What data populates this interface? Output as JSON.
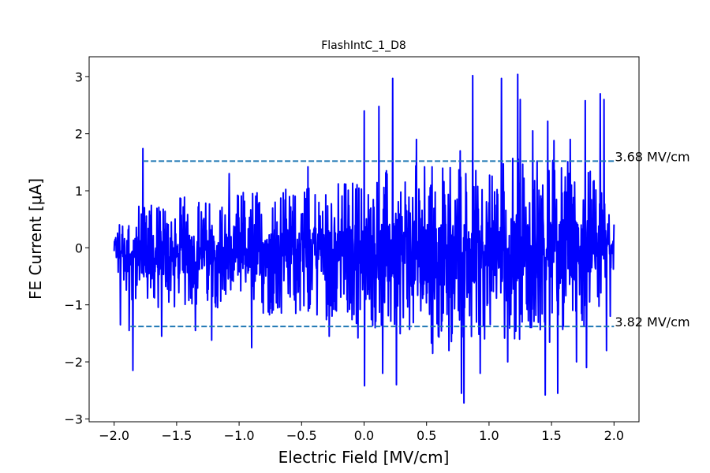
{
  "chart_data": {
    "type": "line",
    "title": "FlashIntC_1_D8",
    "xlabel": "Electric Field [MV/cm]",
    "ylabel": "FE Current [μA]",
    "xlim": [
      -2.2,
      2.2
    ],
    "ylim": [
      -3.05,
      3.35
    ],
    "x_ticks": [
      -2.0,
      -1.5,
      -1.0,
      -0.5,
      0.0,
      0.5,
      1.0,
      1.5,
      2.0
    ],
    "x_tick_labels": [
      "−2.0",
      "−1.5",
      "−1.0",
      "−0.5",
      "0.0",
      "0.5",
      "1.0",
      "1.5",
      "2.0"
    ],
    "y_ticks": [
      -3,
      -2,
      -1,
      0,
      1,
      2,
      3
    ],
    "y_tick_labels": [
      "−3",
      "−2",
      "−1",
      "0",
      "1",
      "2",
      "3"
    ],
    "grid": false,
    "series": [
      {
        "color": "#0000ff",
        "x_range": [
          -2.0,
          2.0
        ],
        "num_points": 1600,
        "envelope_points": [
          {
            "x": -2.0,
            "upper": 0.5,
            "lower": -0.5
          },
          {
            "x": -1.8,
            "upper": 0.9,
            "lower": -1.3
          },
          {
            "x": -1.5,
            "upper": 1.1,
            "lower": -1.3
          },
          {
            "x": -1.2,
            "upper": 1.0,
            "lower": -1.2
          },
          {
            "x": -1.0,
            "upper": 1.2,
            "lower": -1.4
          },
          {
            "x": -0.5,
            "upper": 1.3,
            "lower": -1.4
          },
          {
            "x": 0.0,
            "upper": 1.5,
            "lower": -1.6
          },
          {
            "x": 0.3,
            "upper": 1.7,
            "lower": -1.9
          },
          {
            "x": 0.7,
            "upper": 1.8,
            "lower": -2.0
          },
          {
            "x": 1.0,
            "upper": 1.8,
            "lower": -1.9
          },
          {
            "x": 1.3,
            "upper": 1.9,
            "lower": -2.0
          },
          {
            "x": 1.6,
            "upper": 1.8,
            "lower": -1.9
          },
          {
            "x": 1.8,
            "upper": 1.7,
            "lower": -1.7
          },
          {
            "x": 2.0,
            "upper": 0.6,
            "lower": -0.5
          }
        ],
        "spikes": [
          {
            "x": -1.95,
            "y": -1.35
          },
          {
            "x": -1.88,
            "y": -1.45
          },
          {
            "x": -1.85,
            "y": -2.15
          },
          {
            "x": -1.77,
            "y": 1.74
          },
          {
            "x": -1.62,
            "y": -1.55
          },
          {
            "x": -1.35,
            "y": -1.45
          },
          {
            "x": -1.22,
            "y": -1.62
          },
          {
            "x": -1.08,
            "y": 1.3
          },
          {
            "x": -0.9,
            "y": -1.75
          },
          {
            "x": -0.45,
            "y": 1.42
          },
          {
            "x": -0.28,
            "y": -1.55
          },
          {
            "x": -0.05,
            "y": -1.58
          },
          {
            "x": 0.0,
            "y": 2.4
          },
          {
            "x": 0.005,
            "y": -2.42
          },
          {
            "x": 0.12,
            "y": 2.48
          },
          {
            "x": 0.15,
            "y": -2.2
          },
          {
            "x": 0.23,
            "y": 2.97
          },
          {
            "x": 0.26,
            "y": -2.4
          },
          {
            "x": 0.42,
            "y": 1.9
          },
          {
            "x": 0.55,
            "y": -1.85
          },
          {
            "x": 0.68,
            "y": -1.8
          },
          {
            "x": 0.77,
            "y": 1.7
          },
          {
            "x": 0.78,
            "y": -2.55
          },
          {
            "x": 0.8,
            "y": -2.72
          },
          {
            "x": 0.87,
            "y": 3.02
          },
          {
            "x": 0.93,
            "y": -2.2
          },
          {
            "x": 1.1,
            "y": 2.97
          },
          {
            "x": 1.15,
            "y": -2.0
          },
          {
            "x": 1.23,
            "y": 3.04
          },
          {
            "x": 1.25,
            "y": 2.6
          },
          {
            "x": 1.35,
            "y": 2.05
          },
          {
            "x": 1.45,
            "y": -2.58
          },
          {
            "x": 1.47,
            "y": 2.22
          },
          {
            "x": 1.52,
            "y": 1.88
          },
          {
            "x": 1.55,
            "y": -2.55
          },
          {
            "x": 1.65,
            "y": 1.9
          },
          {
            "x": 1.7,
            "y": -2.0
          },
          {
            "x": 1.77,
            "y": 2.58
          },
          {
            "x": 1.78,
            "y": -2.1
          },
          {
            "x": 1.89,
            "y": 2.7
          },
          {
            "x": 1.92,
            "y": 2.6
          },
          {
            "x": 1.94,
            "y": -1.8
          },
          {
            "x": 1.97,
            "y": -1.2
          }
        ]
      }
    ],
    "annotations": [
      {
        "text": "3.68 MV/cm",
        "x_start": -1.77,
        "x_end": 2.0,
        "y": 1.52,
        "color": "#1f77b4",
        "style": "dashed"
      },
      {
        "text": "3.82 MV/cm",
        "x_start": -1.87,
        "x_end": 2.0,
        "y": -1.38,
        "color": "#1f77b4",
        "style": "dashed"
      }
    ]
  }
}
